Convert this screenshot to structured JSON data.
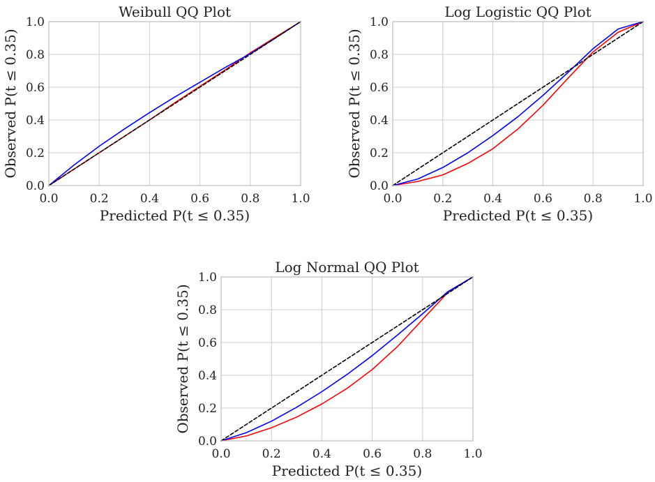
{
  "chart_data": [
    {
      "type": "line",
      "title": "Weibull QQ Plot",
      "xlabel": "Predicted P(t ≤ 0.35)",
      "ylabel": "Observed P(t ≤ 0.35)",
      "xlim": [
        0,
        1
      ],
      "ylim": [
        0,
        1
      ],
      "x_ticks": [
        "0.0",
        "0.2",
        "0.4",
        "0.6",
        "0.8",
        "1.0"
      ],
      "y_ticks": [
        "0.0",
        "0.2",
        "0.4",
        "0.6",
        "0.8",
        "1.0"
      ],
      "grid": true,
      "series": [
        {
          "color": "#ff0000",
          "dashed": false,
          "x": [
            0,
            0.1,
            0.2,
            0.3,
            0.4,
            0.5,
            0.6,
            0.7,
            0.8,
            0.9,
            1.0
          ],
          "y": [
            0,
            0.1,
            0.2,
            0.3,
            0.4,
            0.505,
            0.605,
            0.705,
            0.81,
            0.905,
            1.0
          ]
        },
        {
          "color": "#0000ff",
          "dashed": false,
          "x": [
            0,
            0.1,
            0.2,
            0.3,
            0.4,
            0.5,
            0.6,
            0.7,
            0.8,
            0.9,
            1.0
          ],
          "y": [
            0,
            0.125,
            0.24,
            0.345,
            0.445,
            0.54,
            0.63,
            0.72,
            0.805,
            0.9,
            1.0
          ]
        },
        {
          "color": "#000000",
          "dashed": true,
          "x": [
            0,
            1
          ],
          "y": [
            0,
            1
          ]
        }
      ]
    },
    {
      "type": "line",
      "title": "Log Logistic QQ Plot",
      "xlabel": "Predicted P(t ≤ 0.35)",
      "ylabel": "Observed P(t ≤ 0.35)",
      "xlim": [
        0,
        1
      ],
      "ylim": [
        0,
        1
      ],
      "x_ticks": [
        "0.0",
        "0.2",
        "0.4",
        "0.6",
        "0.8",
        "1.0"
      ],
      "y_ticks": [
        "0.0",
        "0.2",
        "0.4",
        "0.6",
        "0.8",
        "1.0"
      ],
      "grid": true,
      "series": [
        {
          "color": "#ff0000",
          "dashed": false,
          "x": [
            0,
            0.1,
            0.2,
            0.3,
            0.4,
            0.5,
            0.6,
            0.7,
            0.8,
            0.9,
            1.0
          ],
          "y": [
            0,
            0.025,
            0.065,
            0.135,
            0.225,
            0.345,
            0.49,
            0.655,
            0.815,
            0.935,
            1.0
          ]
        },
        {
          "color": "#0000ff",
          "dashed": false,
          "x": [
            0,
            0.1,
            0.2,
            0.3,
            0.4,
            0.5,
            0.6,
            0.7,
            0.8,
            0.9,
            1.0
          ],
          "y": [
            0,
            0.04,
            0.11,
            0.2,
            0.305,
            0.42,
            0.55,
            0.69,
            0.835,
            0.955,
            1.0
          ]
        },
        {
          "color": "#000000",
          "dashed": true,
          "x": [
            0,
            1
          ],
          "y": [
            0,
            1
          ]
        }
      ]
    },
    {
      "type": "line",
      "title": "Log Normal QQ Plot",
      "xlabel": "Predicted P(t ≤ 0.35)",
      "ylabel": "Observed P(t ≤ 0.35)",
      "xlim": [
        0,
        1
      ],
      "ylim": [
        0,
        1
      ],
      "x_ticks": [
        "0.0",
        "0.2",
        "0.4",
        "0.6",
        "0.8",
        "1.0"
      ],
      "y_ticks": [
        "0.0",
        "0.2",
        "0.4",
        "0.6",
        "0.8",
        "1.0"
      ],
      "grid": true,
      "series": [
        {
          "color": "#ff0000",
          "dashed": false,
          "x": [
            0,
            0.1,
            0.2,
            0.3,
            0.4,
            0.5,
            0.6,
            0.7,
            0.8,
            0.9,
            1.0
          ],
          "y": [
            0,
            0.03,
            0.08,
            0.145,
            0.225,
            0.32,
            0.435,
            0.575,
            0.74,
            0.905,
            1.0
          ]
        },
        {
          "color": "#0000ff",
          "dashed": false,
          "x": [
            0,
            0.1,
            0.2,
            0.3,
            0.4,
            0.5,
            0.6,
            0.7,
            0.8,
            0.9,
            1.0
          ],
          "y": [
            0,
            0.05,
            0.12,
            0.205,
            0.3,
            0.405,
            0.52,
            0.645,
            0.775,
            0.91,
            1.0
          ]
        },
        {
          "color": "#000000",
          "dashed": true,
          "x": [
            0,
            1
          ],
          "y": [
            0,
            1
          ]
        }
      ]
    }
  ]
}
